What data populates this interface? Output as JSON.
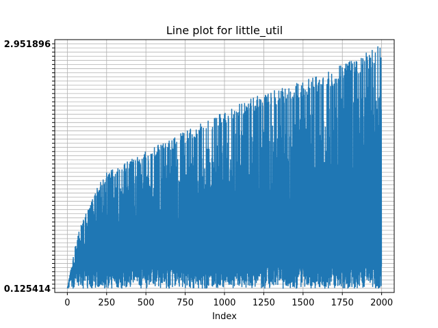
{
  "chart_data": {
    "type": "line",
    "title": "Line plot for little_util",
    "xlabel": "Index",
    "ylabel": "",
    "xlim": [
      -80,
      2080
    ],
    "ylim": [
      -1,
      60
    ],
    "x_ticks": [
      0,
      250,
      500,
      750,
      1000,
      1250,
      1500,
      1750,
      2000
    ],
    "x_tick_labels": [
      "0",
      "250",
      "500",
      "750",
      "1000",
      "1250",
      "1500",
      "1750",
      "2000"
    ],
    "y_tick_count": 60,
    "y_tick_label_top": "2.951896",
    "y_tick_label_bottom": "0.125414",
    "grid": true,
    "legend": "none",
    "colors": {
      "line": "#1f77b4",
      "grid": "#b0b0b0",
      "axes": "#000000"
    },
    "series": [
      {
        "n_points": 2000,
        "upper_envelope": [
          {
            "x": 0,
            "y": 0
          },
          {
            "x": 25,
            "y": 5
          },
          {
            "x": 60,
            "y": 12
          },
          {
            "x": 100,
            "y": 17
          },
          {
            "x": 150,
            "y": 21
          },
          {
            "x": 200,
            "y": 25
          },
          {
            "x": 250,
            "y": 28
          },
          {
            "x": 350,
            "y": 30
          },
          {
            "x": 500,
            "y": 33
          },
          {
            "x": 600,
            "y": 35
          },
          {
            "x": 750,
            "y": 38
          },
          {
            "x": 1000,
            "y": 43
          },
          {
            "x": 1250,
            "y": 47
          },
          {
            "x": 1500,
            "y": 50
          },
          {
            "x": 1750,
            "y": 54
          },
          {
            "x": 1900,
            "y": 57
          },
          {
            "x": 1999,
            "y": 59
          }
        ],
        "lower_band": [
          0,
          6
        ]
      }
    ]
  }
}
